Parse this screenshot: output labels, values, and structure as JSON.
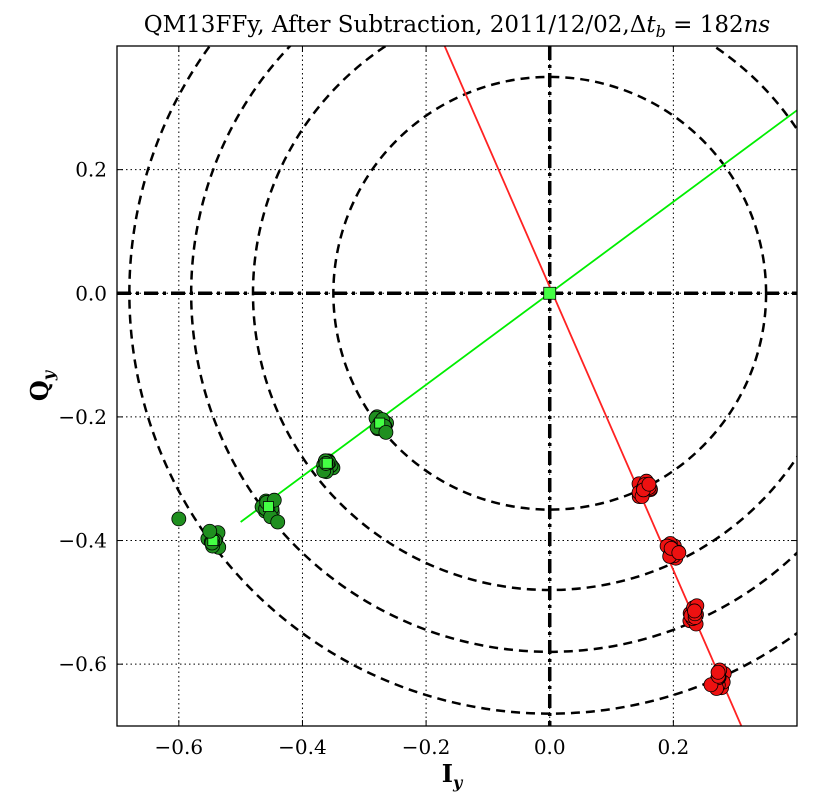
{
  "chart_data": {
    "type": "scatter",
    "title": "QM13FFy, After Subtraction, 2011/12/02,Δt_b = 182ns",
    "title_parts": {
      "main": "QM13FFy, After Subtraction, 2011/12/02,",
      "delta": "Δ",
      "t": "t",
      "sub": "b",
      "eq": " = 182",
      "unit": "ns"
    },
    "xlabel": "I",
    "xlabel_sub": "y",
    "ylabel": "Q",
    "ylabel_sub": "y",
    "xlim": [
      -0.7,
      0.4
    ],
    "ylim": [
      -0.7,
      0.4
    ],
    "xticks": [
      -0.6,
      -0.4,
      -0.2,
      0.0,
      0.2
    ],
    "xtick_labels": [
      "−0.6",
      "−0.4",
      "−0.2",
      "0.0",
      "0.2"
    ],
    "yticks": [
      0.2,
      0.0,
      -0.2,
      -0.4,
      -0.6
    ],
    "ytick_labels": [
      "0.2",
      "0.0",
      "−0.2",
      "−0.4",
      "−0.6"
    ],
    "grid": true,
    "circles_radii": [
      0.35,
      0.48,
      0.58,
      0.68
    ],
    "lines": [
      {
        "name": "green fit",
        "color": "#00ee00",
        "x": [
          -0.5,
          0.4
        ],
        "y": [
          -0.37,
          0.296
        ]
      },
      {
        "name": "red fit",
        "color": "#ff2222",
        "x": [
          -0.17,
          0.31
        ],
        "y": [
          0.4,
          -0.7
        ]
      }
    ],
    "green_clusters": [
      {
        "x": -0.275,
        "y": -0.21,
        "spread": 0.012
      },
      {
        "x": -0.36,
        "y": -0.275,
        "spread": 0.012
      },
      {
        "x": -0.455,
        "y": -0.345,
        "spread": 0.015
      },
      {
        "x": -0.545,
        "y": -0.4,
        "spread": 0.014
      }
    ],
    "green_extra_points": [
      {
        "x": -0.6,
        "y": -0.365
      },
      {
        "x": -0.55,
        "y": -0.385
      },
      {
        "x": -0.44,
        "y": -0.37
      },
      {
        "x": -0.265,
        "y": -0.225
      }
    ],
    "red_clusters": [
      {
        "x": 0.152,
        "y": -0.318,
        "spread": 0.012
      },
      {
        "x": 0.195,
        "y": -0.418,
        "spread": 0.014
      },
      {
        "x": 0.235,
        "y": -0.518,
        "spread": 0.014
      },
      {
        "x": 0.272,
        "y": -0.622,
        "spread": 0.015
      }
    ],
    "origin_marker": {
      "x": 0.0,
      "y": 0.0
    },
    "colors": {
      "green_fill": "#1f8f1f",
      "green_marker_light": "#44ff44",
      "red_fill": "#ee1111",
      "grid": "#000000",
      "circle": "#000000"
    }
  }
}
